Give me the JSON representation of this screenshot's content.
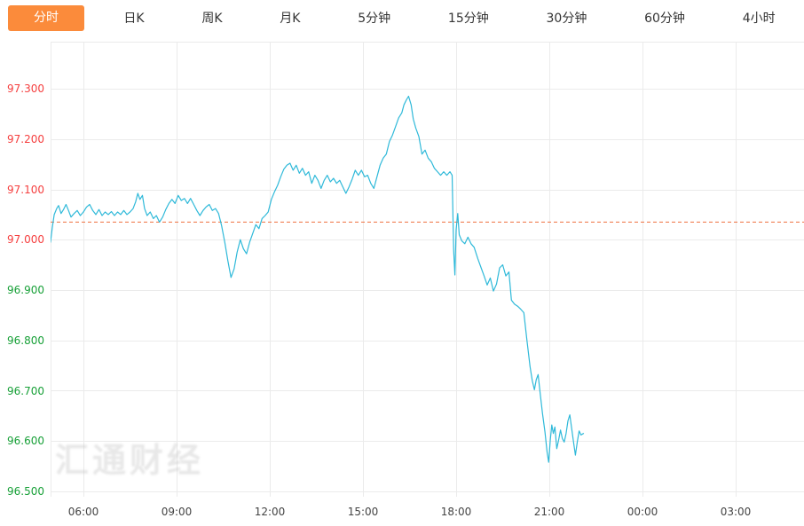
{
  "tabbar": {
    "active_label": "分时",
    "tabs": [
      {
        "label": "分时",
        "active": true
      },
      {
        "label": "日K",
        "active": false
      },
      {
        "label": "周K",
        "active": false
      },
      {
        "label": "月K",
        "active": false
      },
      {
        "label": "5分钟",
        "active": false
      },
      {
        "label": "15分钟",
        "active": false
      },
      {
        "label": "30分钟",
        "active": false
      },
      {
        "label": "60分钟",
        "active": false
      },
      {
        "label": "4小时",
        "active": false
      }
    ]
  },
  "colors": {
    "accent_orange": "#fb8b3b",
    "line_cyan": "#2fb9d9",
    "tick_red": "#f53f3f",
    "tick_green": "#18a038",
    "grid": "#ebebeb",
    "ref_dashed": "#ef7040",
    "x_label": "#444444"
  },
  "watermark": "汇通财经",
  "chart_data": {
    "type": "line",
    "title": "",
    "xlabel": "",
    "ylabel": "",
    "grid": true,
    "legend": "none",
    "x_range_hours": [
      4.94,
      29.2
    ],
    "ylim": [
      96.49,
      97.393
    ],
    "x_ticks": [
      {
        "hour": 6,
        "label": "06:00"
      },
      {
        "hour": 9,
        "label": "09:00"
      },
      {
        "hour": 12,
        "label": "12:00"
      },
      {
        "hour": 15,
        "label": "15:00"
      },
      {
        "hour": 18,
        "label": "18:00"
      },
      {
        "hour": 21,
        "label": "21:00"
      },
      {
        "hour": 24,
        "label": "00:00"
      },
      {
        "hour": 27,
        "label": "03:00"
      }
    ],
    "y_ticks": [
      {
        "value": 97.3,
        "label": "97.300",
        "color": "#f53f3f"
      },
      {
        "value": 97.2,
        "label": "97.200",
        "color": "#f53f3f"
      },
      {
        "value": 97.1,
        "label": "97.100",
        "color": "#f53f3f"
      },
      {
        "value": 97.0,
        "label": "97.000",
        "color": "#f53f3f"
      },
      {
        "value": 96.9,
        "label": "96.900",
        "color": "#18a038"
      },
      {
        "value": 96.8,
        "label": "96.800",
        "color": "#18a038"
      },
      {
        "value": 96.7,
        "label": "96.700",
        "color": "#18a038"
      },
      {
        "value": 96.6,
        "label": "96.600",
        "color": "#18a038"
      },
      {
        "value": 96.5,
        "label": "96.500",
        "color": "#18a038"
      }
    ],
    "ref_line": {
      "value": 97.035,
      "style": "dashed",
      "color": "#ef7040"
    },
    "series": [
      {
        "name": "price",
        "color": "#2fb9d9",
        "points": [
          [
            4.94,
            96.995
          ],
          [
            5.0,
            97.025
          ],
          [
            5.06,
            97.05
          ],
          [
            5.14,
            97.062
          ],
          [
            5.2,
            97.068
          ],
          [
            5.28,
            97.052
          ],
          [
            5.36,
            97.06
          ],
          [
            5.44,
            97.07
          ],
          [
            5.52,
            97.058
          ],
          [
            5.6,
            97.045
          ],
          [
            5.7,
            97.052
          ],
          [
            5.8,
            97.058
          ],
          [
            5.9,
            97.048
          ],
          [
            6.0,
            97.055
          ],
          [
            6.1,
            97.065
          ],
          [
            6.2,
            97.07
          ],
          [
            6.3,
            97.058
          ],
          [
            6.4,
            97.05
          ],
          [
            6.5,
            97.06
          ],
          [
            6.6,
            97.048
          ],
          [
            6.7,
            97.055
          ],
          [
            6.8,
            97.05
          ],
          [
            6.9,
            97.056
          ],
          [
            7.0,
            97.048
          ],
          [
            7.1,
            97.055
          ],
          [
            7.2,
            97.05
          ],
          [
            7.3,
            97.058
          ],
          [
            7.4,
            97.05
          ],
          [
            7.5,
            97.055
          ],
          [
            7.6,
            97.062
          ],
          [
            7.68,
            97.075
          ],
          [
            7.75,
            97.092
          ],
          [
            7.82,
            97.08
          ],
          [
            7.9,
            97.088
          ],
          [
            7.97,
            97.062
          ],
          [
            8.05,
            97.048
          ],
          [
            8.15,
            97.055
          ],
          [
            8.25,
            97.042
          ],
          [
            8.35,
            97.048
          ],
          [
            8.45,
            97.035
          ],
          [
            8.55,
            97.045
          ],
          [
            8.65,
            97.06
          ],
          [
            8.75,
            97.072
          ],
          [
            8.85,
            97.08
          ],
          [
            8.95,
            97.072
          ],
          [
            9.05,
            97.088
          ],
          [
            9.15,
            97.078
          ],
          [
            9.25,
            97.082
          ],
          [
            9.35,
            97.072
          ],
          [
            9.45,
            97.082
          ],
          [
            9.55,
            97.07
          ],
          [
            9.65,
            97.058
          ],
          [
            9.75,
            97.048
          ],
          [
            9.85,
            97.058
          ],
          [
            9.95,
            97.065
          ],
          [
            10.05,
            97.07
          ],
          [
            10.15,
            97.058
          ],
          [
            10.25,
            97.062
          ],
          [
            10.35,
            97.052
          ],
          [
            10.45,
            97.028
          ],
          [
            10.55,
            96.995
          ],
          [
            10.65,
            96.958
          ],
          [
            10.75,
            96.925
          ],
          [
            10.85,
            96.942
          ],
          [
            10.95,
            96.975
          ],
          [
            11.05,
            97.0
          ],
          [
            11.15,
            96.982
          ],
          [
            11.25,
            96.972
          ],
          [
            11.35,
            96.995
          ],
          [
            11.45,
            97.012
          ],
          [
            11.55,
            97.03
          ],
          [
            11.65,
            97.022
          ],
          [
            11.75,
            97.042
          ],
          [
            11.85,
            97.048
          ],
          [
            11.95,
            97.055
          ],
          [
            12.05,
            97.08
          ],
          [
            12.15,
            97.095
          ],
          [
            12.25,
            97.108
          ],
          [
            12.35,
            97.125
          ],
          [
            12.45,
            97.14
          ],
          [
            12.55,
            97.148
          ],
          [
            12.65,
            97.152
          ],
          [
            12.75,
            97.138
          ],
          [
            12.85,
            97.148
          ],
          [
            12.95,
            97.132
          ],
          [
            13.05,
            97.142
          ],
          [
            13.15,
            97.128
          ],
          [
            13.25,
            97.135
          ],
          [
            13.35,
            97.112
          ],
          [
            13.45,
            97.128
          ],
          [
            13.55,
            97.118
          ],
          [
            13.65,
            97.102
          ],
          [
            13.75,
            97.118
          ],
          [
            13.85,
            97.128
          ],
          [
            13.95,
            97.115
          ],
          [
            14.05,
            97.122
          ],
          [
            14.15,
            97.112
          ],
          [
            14.25,
            97.118
          ],
          [
            14.35,
            97.105
          ],
          [
            14.45,
            97.092
          ],
          [
            14.55,
            97.105
          ],
          [
            14.65,
            97.12
          ],
          [
            14.75,
            97.138
          ],
          [
            14.85,
            97.128
          ],
          [
            14.95,
            97.138
          ],
          [
            15.05,
            97.125
          ],
          [
            15.15,
            97.128
          ],
          [
            15.25,
            97.112
          ],
          [
            15.35,
            97.102
          ],
          [
            15.45,
            97.125
          ],
          [
            15.55,
            97.148
          ],
          [
            15.65,
            97.162
          ],
          [
            15.75,
            97.17
          ],
          [
            15.85,
            97.195
          ],
          [
            15.95,
            97.208
          ],
          [
            16.05,
            97.225
          ],
          [
            16.15,
            97.242
          ],
          [
            16.25,
            97.252
          ],
          [
            16.32,
            97.268
          ],
          [
            16.4,
            97.278
          ],
          [
            16.47,
            97.285
          ],
          [
            16.55,
            97.268
          ],
          [
            16.62,
            97.24
          ],
          [
            16.7,
            97.222
          ],
          [
            16.8,
            97.205
          ],
          [
            16.9,
            97.17
          ],
          [
            17.0,
            97.178
          ],
          [
            17.1,
            97.162
          ],
          [
            17.2,
            97.155
          ],
          [
            17.3,
            97.142
          ],
          [
            17.4,
            97.135
          ],
          [
            17.5,
            97.128
          ],
          [
            17.6,
            97.135
          ],
          [
            17.7,
            97.128
          ],
          [
            17.8,
            97.135
          ],
          [
            17.87,
            97.128
          ],
          [
            17.92,
            96.98
          ],
          [
            17.96,
            96.93
          ],
          [
            18.0,
            97.02
          ],
          [
            18.05,
            97.052
          ],
          [
            18.1,
            97.01
          ],
          [
            18.18,
            96.998
          ],
          [
            18.28,
            96.992
          ],
          [
            18.38,
            97.005
          ],
          [
            18.48,
            96.992
          ],
          [
            18.58,
            96.985
          ],
          [
            18.7,
            96.962
          ],
          [
            18.8,
            96.945
          ],
          [
            18.9,
            96.928
          ],
          [
            19.0,
            96.91
          ],
          [
            19.1,
            96.924
          ],
          [
            19.2,
            96.898
          ],
          [
            19.3,
            96.912
          ],
          [
            19.4,
            96.944
          ],
          [
            19.5,
            96.95
          ],
          [
            19.6,
            96.928
          ],
          [
            19.7,
            96.936
          ],
          [
            19.78,
            96.88
          ],
          [
            19.88,
            96.872
          ],
          [
            19.98,
            96.868
          ],
          [
            20.08,
            96.862
          ],
          [
            20.18,
            96.855
          ],
          [
            20.28,
            96.8
          ],
          [
            20.38,
            96.748
          ],
          [
            20.45,
            96.72
          ],
          [
            20.52,
            96.702
          ],
          [
            20.58,
            96.722
          ],
          [
            20.64,
            96.732
          ],
          [
            20.7,
            96.698
          ],
          [
            20.78,
            96.655
          ],
          [
            20.86,
            96.618
          ],
          [
            20.93,
            96.578
          ],
          [
            20.98,
            96.558
          ],
          [
            21.03,
            96.602
          ],
          [
            21.08,
            96.632
          ],
          [
            21.13,
            96.615
          ],
          [
            21.18,
            96.628
          ],
          [
            21.24,
            96.585
          ],
          [
            21.3,
            96.602
          ],
          [
            21.36,
            96.622
          ],
          [
            21.42,
            96.605
          ],
          [
            21.48,
            96.598
          ],
          [
            21.54,
            96.615
          ],
          [
            21.6,
            96.64
          ],
          [
            21.66,
            96.652
          ],
          [
            21.72,
            96.625
          ],
          [
            21.78,
            96.598
          ],
          [
            21.84,
            96.572
          ],
          [
            21.9,
            96.598
          ],
          [
            21.96,
            96.62
          ],
          [
            22.02,
            96.612
          ],
          [
            22.1,
            96.615
          ]
        ]
      }
    ]
  }
}
